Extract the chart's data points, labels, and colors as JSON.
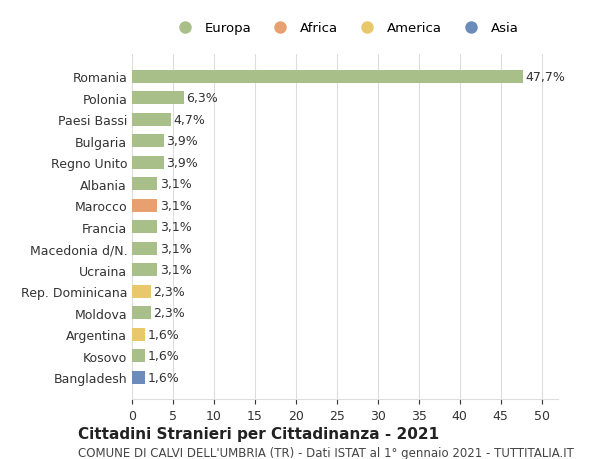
{
  "categories": [
    "Bangladesh",
    "Kosovo",
    "Argentina",
    "Moldova",
    "Rep. Dominicana",
    "Ucraina",
    "Macedonia d/N.",
    "Francia",
    "Marocco",
    "Albania",
    "Regno Unito",
    "Bulgaria",
    "Paesi Bassi",
    "Polonia",
    "Romania"
  ],
  "values": [
    1.6,
    1.6,
    1.6,
    2.3,
    2.3,
    3.1,
    3.1,
    3.1,
    3.1,
    3.1,
    3.9,
    3.9,
    4.7,
    6.3,
    47.7
  ],
  "labels": [
    "1,6%",
    "1,6%",
    "1,6%",
    "2,3%",
    "2,3%",
    "3,1%",
    "3,1%",
    "3,1%",
    "3,1%",
    "3,1%",
    "3,9%",
    "3,9%",
    "4,7%",
    "6,3%",
    "47,7%"
  ],
  "colors": [
    "#6b8cba",
    "#a8bf8a",
    "#e8c86a",
    "#a8bf8a",
    "#e8c86a",
    "#a8bf8a",
    "#a8bf8a",
    "#a8bf8a",
    "#e8a070",
    "#a8bf8a",
    "#a8bf8a",
    "#a8bf8a",
    "#a8bf8a",
    "#a8bf8a",
    "#a8bf8a"
  ],
  "legend_names": [
    "Europa",
    "Africa",
    "America",
    "Asia"
  ],
  "legend_colors": [
    "#a8bf8a",
    "#e8a070",
    "#e8c86a",
    "#6b8cba"
  ],
  "xlim": [
    0,
    52
  ],
  "xticks": [
    0,
    5,
    10,
    15,
    20,
    25,
    30,
    35,
    40,
    45,
    50
  ],
  "title": "Cittadini Stranieri per Cittadinanza - 2021",
  "subtitle": "COMUNE DI CALVI DELL'UMBRIA (TR) - Dati ISTAT al 1° gennaio 2021 - TUTTITALIA.IT",
  "background_color": "#ffffff",
  "grid_color": "#dddddd",
  "label_fontsize": 9,
  "tick_fontsize": 9,
  "title_fontsize": 11,
  "subtitle_fontsize": 8.5
}
